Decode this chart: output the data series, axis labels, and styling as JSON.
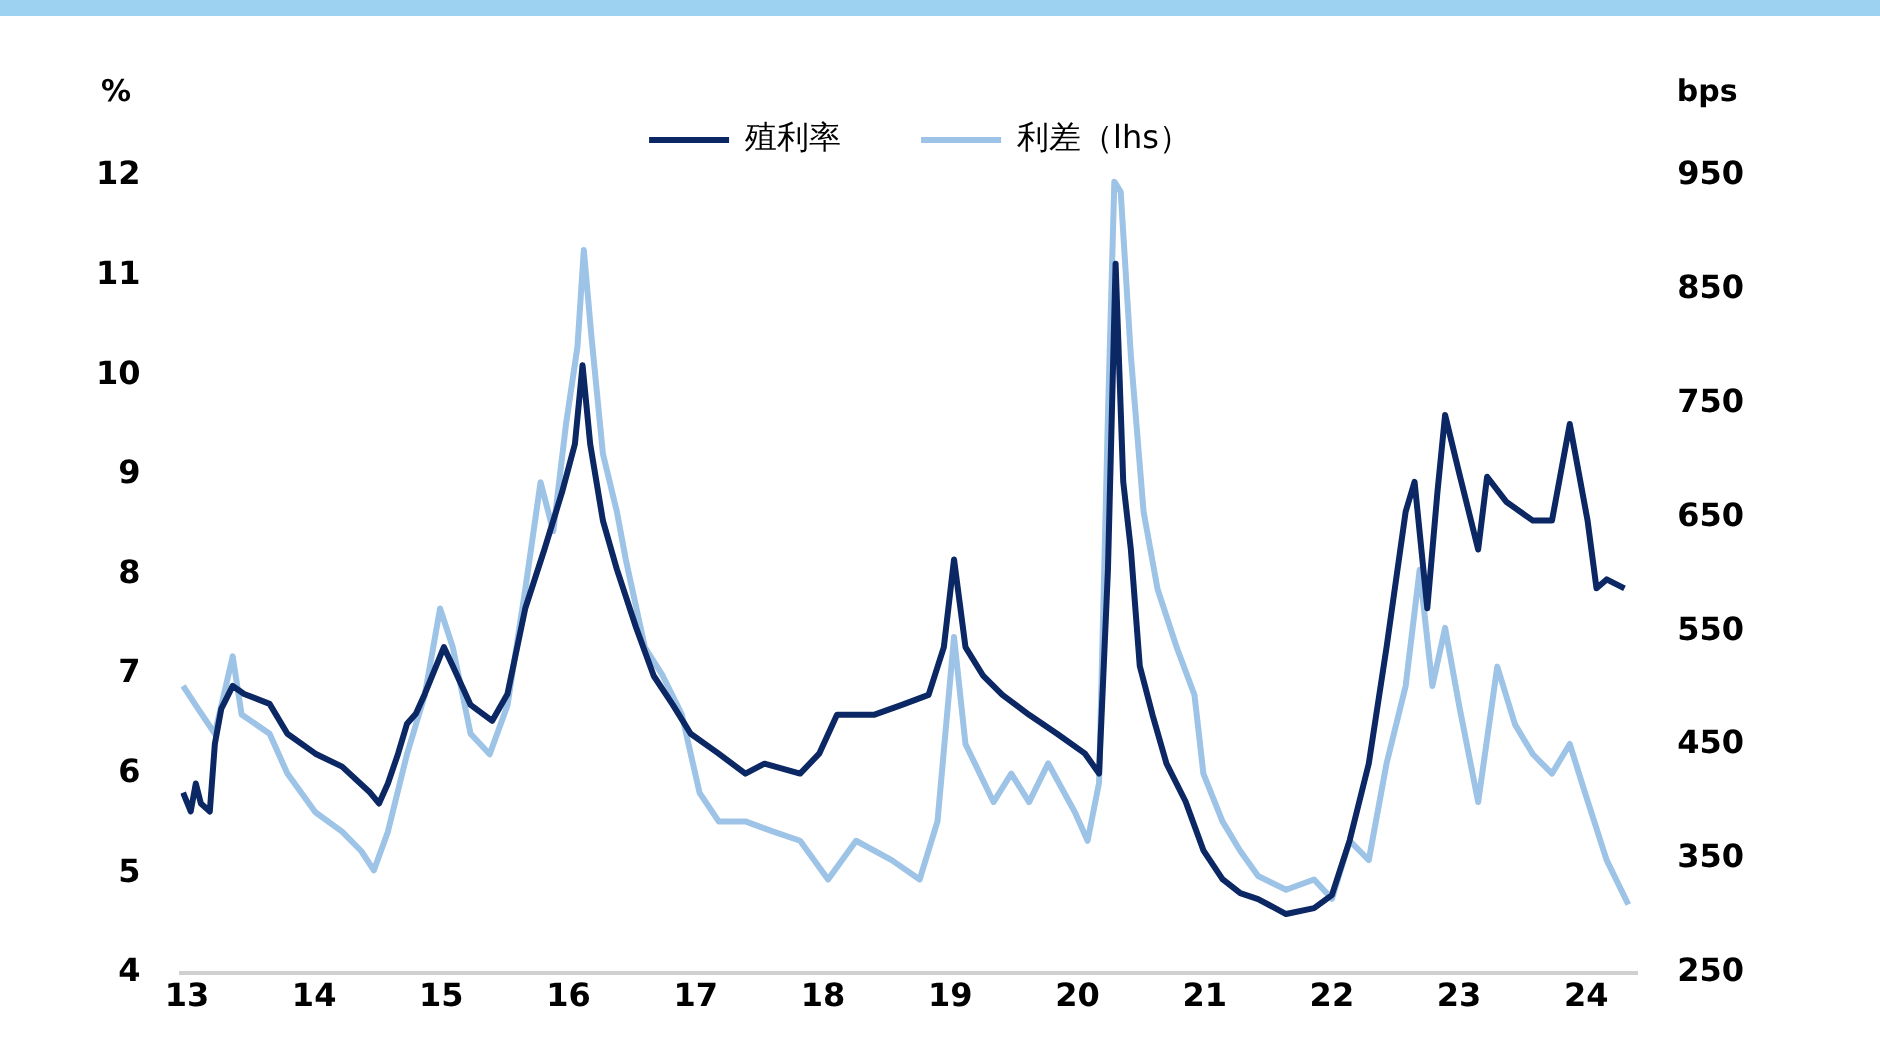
{
  "chart_data": {
    "type": "line",
    "ylabel": "%",
    "y2label": "bps",
    "xlim": [
      12.95,
      24.4
    ],
    "xticks": [
      13,
      14,
      15,
      16,
      17,
      18,
      19,
      20,
      21,
      22,
      23,
      24
    ],
    "ylim": [
      4,
      12
    ],
    "yticks": [
      4,
      5,
      6,
      7,
      8,
      9,
      10,
      11,
      12
    ],
    "y2lim": [
      250,
      950
    ],
    "y2ticks": [
      250,
      350,
      450,
      550,
      650,
      750,
      850,
      950
    ],
    "grid": false,
    "legend": "top",
    "marker": "none",
    "line_style": "solid",
    "series": [
      {
        "name": "殖利率",
        "color": "#0b2764",
        "x": [
          12.97,
          13.03,
          13.07,
          13.11,
          13.18,
          13.22,
          13.27,
          13.36,
          13.45,
          13.65,
          13.79,
          14.01,
          14.22,
          14.44,
          14.51,
          14.58,
          14.66,
          14.73,
          14.8,
          14.87,
          15.02,
          15.09,
          15.23,
          15.4,
          15.52,
          15.66,
          15.81,
          15.95,
          16.05,
          16.11,
          16.17,
          16.27,
          16.38,
          16.53,
          16.67,
          16.82,
          16.96,
          17.18,
          17.39,
          17.54,
          17.82,
          17.97,
          18.11,
          18.4,
          18.62,
          18.83,
          18.95,
          19.03,
          19.12,
          19.26,
          19.41,
          19.62,
          19.84,
          20.06,
          20.17,
          20.24,
          20.3,
          20.36,
          20.42,
          20.49,
          20.59,
          20.7,
          20.85,
          20.99,
          21.14,
          21.28,
          21.42,
          21.64,
          21.86,
          22.0,
          22.14,
          22.29,
          22.43,
          22.58,
          22.65,
          22.75,
          22.83,
          22.89,
          23.0,
          23.15,
          23.22,
          23.37,
          23.58,
          23.73,
          23.87,
          24.01,
          24.08,
          24.16,
          24.3
        ],
        "values": [
          5.81,
          5.62,
          5.9,
          5.7,
          5.62,
          6.3,
          6.65,
          6.88,
          6.8,
          6.7,
          6.4,
          6.2,
          6.07,
          5.81,
          5.7,
          5.9,
          6.2,
          6.5,
          6.6,
          6.8,
          7.27,
          7.08,
          6.69,
          6.53,
          6.8,
          7.66,
          8.25,
          8.83,
          9.31,
          10.1,
          9.31,
          8.54,
          8.05,
          7.47,
          6.98,
          6.69,
          6.4,
          6.2,
          6.0,
          6.1,
          6.0,
          6.2,
          6.59,
          6.59,
          6.69,
          6.79,
          7.27,
          8.15,
          7.27,
          6.98,
          6.79,
          6.59,
          6.4,
          6.2,
          6.0,
          8.05,
          11.12,
          8.93,
          8.25,
          7.08,
          6.59,
          6.1,
          5.72,
          5.23,
          4.94,
          4.8,
          4.74,
          4.59,
          4.65,
          4.78,
          5.33,
          6.1,
          7.27,
          8.63,
          8.93,
          7.66,
          8.83,
          9.6,
          9.02,
          8.25,
          8.98,
          8.73,
          8.54,
          8.54,
          9.51,
          8.54,
          7.86,
          7.95,
          7.86
        ]
      },
      {
        "name": "利差（lhs）",
        "color": "#9dc3e6",
        "axis": "y2",
        "x": [
          12.97,
          13.07,
          13.22,
          13.36,
          13.43,
          13.65,
          13.79,
          14.01,
          14.22,
          14.37,
          14.47,
          14.58,
          14.73,
          14.87,
          14.99,
          15.09,
          15.23,
          15.38,
          15.52,
          15.66,
          15.78,
          15.88,
          15.98,
          16.07,
          16.12,
          16.18,
          16.27,
          16.38,
          16.45,
          16.6,
          16.74,
          16.89,
          17.03,
          17.18,
          17.39,
          17.61,
          17.82,
          18.04,
          18.26,
          18.54,
          18.76,
          18.9,
          19.03,
          19.12,
          19.34,
          19.48,
          19.62,
          19.77,
          19.98,
          20.08,
          20.17,
          20.24,
          20.29,
          20.34,
          20.42,
          20.52,
          20.63,
          20.78,
          20.92,
          20.99,
          21.14,
          21.28,
          21.42,
          21.64,
          21.86,
          22.0,
          22.14,
          22.29,
          22.43,
          22.58,
          22.69,
          22.79,
          22.89,
          23.0,
          23.15,
          23.3,
          23.44,
          23.58,
          23.73,
          23.87,
          23.99,
          24.16,
          24.33
        ],
        "values": [
          502,
          485,
          460,
          528,
          477,
          460,
          425,
          391,
          374,
          357,
          340,
          374,
          442,
          494,
          570,
          536,
          460,
          442,
          485,
          587,
          681,
          638,
          732,
          800,
          885,
          809,
          706,
          655,
          613,
          536,
          511,
          477,
          408,
          383,
          383,
          374,
          366,
          332,
          366,
          349,
          332,
          383,
          545,
          451,
          400,
          425,
          400,
          434,
          391,
          366,
          417,
          740,
          945,
          936,
          792,
          655,
          587,
          536,
          494,
          425,
          383,
          357,
          335,
          323,
          332,
          315,
          366,
          349,
          434,
          502,
          604,
          502,
          553,
          485,
          400,
          519,
          468,
          442,
          425,
          451,
          408,
          349,
          310
        ]
      }
    ]
  }
}
